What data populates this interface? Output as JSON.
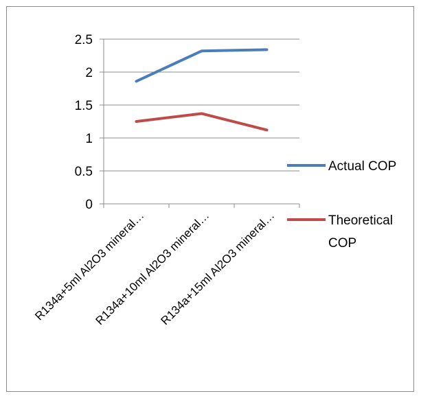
{
  "chart_data": {
    "type": "line",
    "title": "",
    "xlabel": "",
    "ylabel": "",
    "categories": [
      "R134a+5ml Al2O3 mineral…",
      "R134a+10ml Al2O3 mineral…",
      "R134a+15ml Al2O3 mineral…"
    ],
    "y_ticks": [
      "0",
      "0.5",
      "1",
      "1.5",
      "2",
      "2.5"
    ],
    "ylim": [
      0,
      2.5
    ],
    "grid": true,
    "legend_position": "right",
    "series": [
      {
        "name": "Actual COP",
        "color": "#4a7ebb",
        "values": [
          1.86,
          2.32,
          2.34
        ]
      },
      {
        "name": "Theoretical COP",
        "color": "#be4b48",
        "values": [
          1.25,
          1.37,
          1.12
        ]
      }
    ],
    "legend": {
      "actual_label": "Actual COP",
      "theoretical_line1": "Theoretical",
      "theoretical_line2": "COP"
    }
  }
}
